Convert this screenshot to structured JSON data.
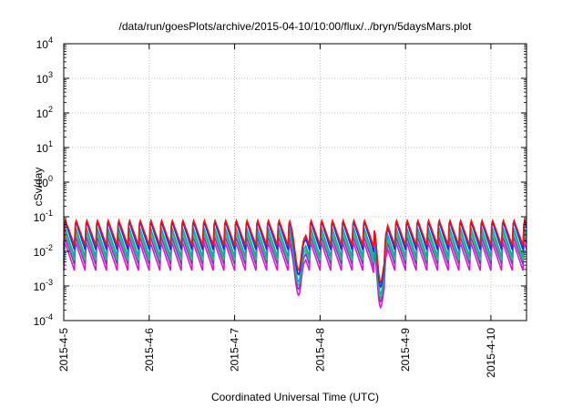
{
  "chart_data": {
    "type": "line",
    "title": "/data/run/goesPlots/archive/2015-04-10/10:00/flux/../bryn/5daysMars.plot",
    "xlabel": "Coordinated Universal Time (UTC)",
    "ylabel": "cSv/day",
    "yscale": "log",
    "ylim": [
      0.0001,
      10000
    ],
    "xlim": [
      "2015-04-05T00:00",
      "2015-04-10T10:00"
    ],
    "grid": true,
    "ytick_labels": [
      {
        "base": "10",
        "exp": "-4"
      },
      {
        "base": "10",
        "exp": "-3"
      },
      {
        "base": "10",
        "exp": "-2"
      },
      {
        "base": "10",
        "exp": "-1"
      },
      {
        "base": "10",
        "exp": "0"
      },
      {
        "base": "10",
        "exp": "1"
      },
      {
        "base": "10",
        "exp": "2"
      },
      {
        "base": "10",
        "exp": "3"
      },
      {
        "base": "10",
        "exp": "4"
      }
    ],
    "xtick_labels": [
      "2015-4-5",
      "2015-4-6",
      "2015-4-7",
      "2015-4-8",
      "2015-4-9",
      "2015-4-10"
    ],
    "xticks": [
      "2015-04-05",
      "2015-04-06",
      "2015-04-07",
      "2015-04-08",
      "2015-04-09",
      "2015-04-10"
    ],
    "pattern": {
      "cycle_hours": 3,
      "dips": [
        {
          "time": "2015-04-07T18:00",
          "min": 0.0009
        },
        {
          "time": "2015-04-08T17:00",
          "min": 0.0004
        }
      ]
    },
    "series": [
      {
        "color": "#e8171d",
        "peak": 0.085,
        "trough": 0.015
      },
      {
        "color": "#1f2bd3",
        "peak": 0.075,
        "trough": 0.011
      },
      {
        "color": "#17a3b8",
        "peak": 0.048,
        "trough": 0.007
      },
      {
        "color": "#2dbf72",
        "peak": 0.036,
        "trough": 0.0055
      },
      {
        "color": "#7a3db8",
        "peak": 0.026,
        "trough": 0.0042
      },
      {
        "color": "#e014d4",
        "peak": 0.018,
        "trough": 0.0028
      }
    ]
  }
}
